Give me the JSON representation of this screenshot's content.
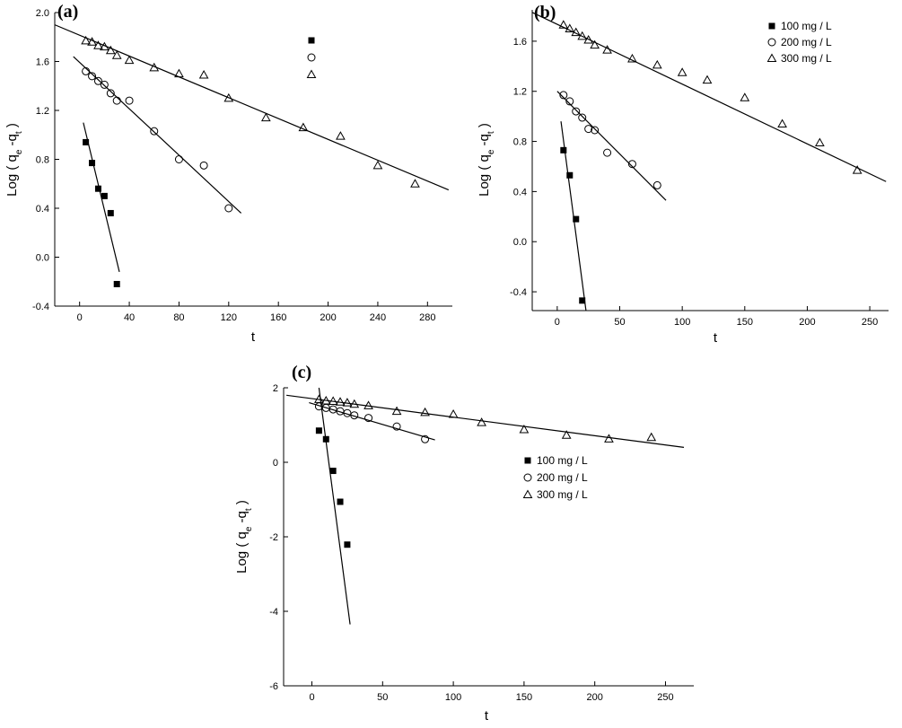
{
  "chart_data": [
    {
      "panel": "(a)",
      "type": "scatter",
      "xlabel": "t",
      "ylabel": "Log (qₑ-qₜ)",
      "ylabel_parts": {
        "main": "Log ( q",
        "sub1": "e",
        "mid": " -q",
        "sub2": "t",
        "end": ")"
      },
      "xlim": [
        -20,
        300
      ],
      "ylim": [
        -0.4,
        2.0
      ],
      "xticks": [
        0,
        40,
        80,
        120,
        160,
        200,
        240,
        280
      ],
      "yticks": [
        -0.4,
        0.0,
        0.4,
        0.8,
        1.2,
        1.6,
        2.0
      ],
      "ytick_labels": [
        "-0.4",
        "0.0",
        "0.4",
        "0.8",
        "1.2",
        "1.6",
        "2.0"
      ],
      "legend": "marker-only, top",
      "series": [
        {
          "name": "100 mg / L",
          "marker": "square",
          "x": [
            5,
            10,
            15,
            20,
            25,
            30
          ],
          "y": [
            0.94,
            0.77,
            0.56,
            0.5,
            0.36,
            -0.22
          ],
          "fit": [
            [
              3,
              1.1
            ],
            [
              32,
              -0.12
            ]
          ]
        },
        {
          "name": "200 mg / L",
          "marker": "circle",
          "x": [
            5,
            10,
            15,
            20,
            25,
            30,
            40,
            60,
            80,
            100,
            120
          ],
          "y": [
            1.52,
            1.48,
            1.44,
            1.41,
            1.34,
            1.28,
            1.28,
            1.03,
            0.8,
            0.75,
            0.4
          ],
          "fit": [
            [
              -5,
              1.64
            ],
            [
              130,
              0.36
            ]
          ]
        },
        {
          "name": "300 mg / L",
          "marker": "triangle",
          "x": [
            5,
            10,
            15,
            20,
            25,
            30,
            40,
            60,
            80,
            100,
            120,
            150,
            180,
            210,
            240,
            270
          ],
          "y": [
            1.77,
            1.76,
            1.73,
            1.72,
            1.69,
            1.65,
            1.61,
            1.55,
            1.5,
            1.49,
            1.3,
            1.14,
            1.06,
            0.99,
            0.75,
            0.6
          ],
          "fit": [
            [
              -20,
              1.9
            ],
            [
              297,
              0.55
            ]
          ]
        }
      ]
    },
    {
      "panel": "(b)",
      "type": "scatter",
      "xlabel": "t",
      "ylabel": "Log (qₑ-qₜ)",
      "ylabel_parts": {
        "main": "Log ( q",
        "sub1": "e",
        "mid": " -q",
        "sub2": "t",
        "end": ")"
      },
      "xlim": [
        -20,
        265
      ],
      "ylim": [
        -0.55,
        1.85
      ],
      "xticks": [
        0,
        50,
        100,
        150,
        200,
        250
      ],
      "yticks": [
        -0.4,
        0.0,
        0.4,
        0.8,
        1.2,
        1.6
      ],
      "ytick_labels": [
        "-0.4",
        "0.0",
        "0.4",
        "0.8",
        "1.2",
        "1.6"
      ],
      "legend": "top-right",
      "series": [
        {
          "name": "100 mg / L",
          "marker": "square",
          "x": [
            5,
            10,
            15,
            20
          ],
          "y": [
            0.73,
            0.53,
            0.18,
            -0.47
          ],
          "fit": [
            [
              3,
              0.96
            ],
            [
              23,
              -0.55
            ]
          ]
        },
        {
          "name": "200 mg / L",
          "marker": "circle",
          "x": [
            5,
            10,
            15,
            20,
            25,
            30,
            40,
            60,
            80
          ],
          "y": [
            1.17,
            1.12,
            1.04,
            0.99,
            0.9,
            0.89,
            0.71,
            0.62,
            0.45
          ],
          "fit": [
            [
              0,
              1.2
            ],
            [
              87,
              0.33
            ]
          ]
        },
        {
          "name": "300 mg / L",
          "marker": "triangle",
          "x": [
            5,
            10,
            15,
            20,
            25,
            30,
            40,
            60,
            80,
            100,
            120,
            150,
            180,
            210,
            240
          ],
          "y": [
            1.73,
            1.7,
            1.67,
            1.64,
            1.61,
            1.57,
            1.53,
            1.46,
            1.41,
            1.35,
            1.29,
            1.15,
            0.94,
            0.79,
            0.57
          ],
          "fit": [
            [
              -20,
              1.83
            ],
            [
              263,
              0.48
            ]
          ]
        }
      ]
    },
    {
      "panel": "(c)",
      "type": "scatter",
      "xlabel": "t",
      "ylabel": "Log (qₑ-qₜ)",
      "ylabel_parts": {
        "main": "Log ( q",
        "sub1": "e",
        "mid": " -q",
        "sub2": "t",
        "end": ")"
      },
      "xlim": [
        -20,
        270
      ],
      "ylim": [
        -6,
        2
      ],
      "xticks": [
        0,
        50,
        100,
        150,
        200,
        250
      ],
      "yticks": [
        -6,
        -4,
        -2,
        0,
        2
      ],
      "ytick_labels": [
        "-6",
        "-4",
        "-2",
        "0",
        "2"
      ],
      "legend": "center",
      "series": [
        {
          "name": "100 mg / L",
          "marker": "square",
          "x": [
            5,
            10,
            15,
            20,
            25
          ],
          "y": [
            0.85,
            0.62,
            -0.23,
            -1.06,
            -2.21
          ],
          "fit": [
            [
              5,
              2.0
            ],
            [
              27,
              -4.35
            ]
          ]
        },
        {
          "name": "200 mg / L",
          "marker": "circle",
          "x": [
            5,
            10,
            15,
            20,
            25,
            30,
            40,
            60,
            80
          ],
          "y": [
            1.5,
            1.46,
            1.42,
            1.37,
            1.32,
            1.26,
            1.19,
            0.96,
            0.62
          ],
          "fit": [
            [
              -2,
              1.6
            ],
            [
              87,
              0.6
            ]
          ]
        },
        {
          "name": "300 mg / L",
          "marker": "triangle",
          "x": [
            5,
            10,
            15,
            20,
            25,
            30,
            40,
            60,
            80,
            100,
            120,
            150,
            180,
            210,
            240
          ],
          "y": [
            1.69,
            1.65,
            1.64,
            1.62,
            1.6,
            1.56,
            1.52,
            1.37,
            1.34,
            1.29,
            1.07,
            0.88,
            0.73,
            0.63,
            0.67
          ],
          "fit": [
            [
              -18,
              1.8
            ],
            [
              263,
              0.4
            ]
          ]
        }
      ]
    }
  ]
}
